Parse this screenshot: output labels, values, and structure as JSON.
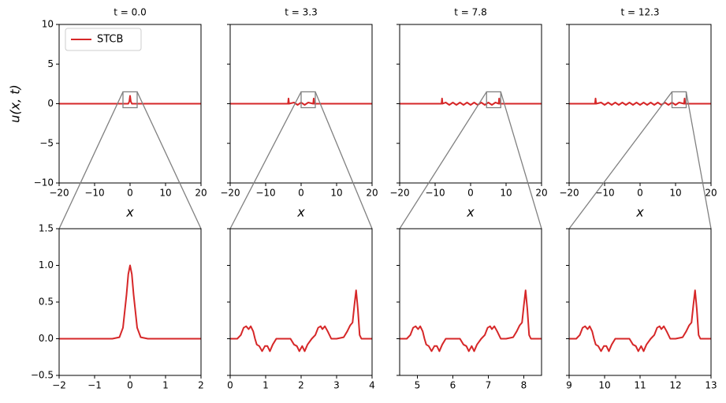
{
  "chart_data": [
    {
      "type": "line",
      "title": "t = 0.0",
      "xlabel": "x",
      "ylabel": "u(x, t)",
      "legend": "upper left",
      "x": [
        -20,
        -0.5,
        -0.2,
        0,
        0.2,
        0.5,
        20
      ],
      "series": [
        {
          "name": "STCB",
          "color": "#d62728",
          "values": [
            0,
            0,
            0.3,
            1,
            0.3,
            0,
            0
          ]
        }
      ],
      "xlim": [
        -20,
        20
      ],
      "xticks": [
        {
          "value": -20,
          "label": "−20"
        },
        {
          "value": -10,
          "label": "−10"
        },
        0,
        10,
        20
      ],
      "ylim": [
        -10,
        10
      ],
      "yticks": [
        {
          "value": -10,
          "label": "−10"
        },
        {
          "value": -5,
          "label": "−5"
        },
        0,
        5,
        10
      ]
    },
    {
      "type": "line",
      "title": "t = 3.3",
      "xlabel": "x",
      "x": [
        -20,
        -3.7,
        -3.55,
        -3.4,
        -2,
        -1,
        0,
        1,
        2,
        3.4,
        3.55,
        3.7,
        20
      ],
      "series": [
        {
          "color": "#d62728",
          "values": [
            0,
            0,
            0.66,
            0,
            0.15,
            -0.15,
            0.15,
            -0.15,
            0.15,
            0,
            0.66,
            0,
            0
          ]
        }
      ],
      "xlim": [
        -20,
        20
      ],
      "xticks": [
        {
          "value": -20,
          "label": "−20"
        },
        {
          "value": -10,
          "label": "−10"
        },
        0,
        10,
        20
      ],
      "ylim": [
        -10,
        10
      ],
      "yticks": [
        -10,
        -5,
        0,
        5,
        10
      ],
      "ytick_labels": false
    },
    {
      "type": "line",
      "title": "t = 7.8",
      "xlabel": "x",
      "x": [
        -20,
        -8.2,
        -8.05,
        -7.9,
        -7,
        -6,
        -5,
        -4,
        -3,
        -2,
        -1,
        0,
        1,
        2,
        3,
        4,
        5,
        6,
        7,
        7.9,
        8.05,
        8.2,
        20
      ],
      "series": [
        {
          "color": "#d62728",
          "values": [
            0,
            0,
            0.66,
            0,
            0.15,
            -0.15,
            0.15,
            -0.15,
            0.15,
            -0.15,
            0.15,
            -0.15,
            0.15,
            -0.15,
            0.15,
            -0.15,
            0.15,
            -0.15,
            0.15,
            0,
            0.66,
            0,
            0
          ]
        }
      ],
      "xlim": [
        -20,
        20
      ],
      "xticks": [
        {
          "value": -20,
          "label": "−20"
        },
        {
          "value": -10,
          "label": "−10"
        },
        0,
        10,
        20
      ],
      "ylim": [
        -10,
        10
      ],
      "yticks": [
        -10,
        -5,
        0,
        5,
        10
      ],
      "ytick_labels": false
    },
    {
      "type": "line",
      "title": "t = 12.3",
      "xlabel": "x",
      "x": [
        -20,
        -12.7,
        -12.55,
        -12.4,
        -11,
        -10,
        -9,
        -8,
        -7,
        -6,
        -5,
        -4,
        -3,
        -2,
        -1,
        0,
        1,
        2,
        3,
        4,
        5,
        6,
        7,
        8,
        9,
        10,
        11,
        12.4,
        12.55,
        12.7,
        20
      ],
      "series": [
        {
          "color": "#d62728",
          "values": [
            0,
            0,
            0.66,
            0,
            0.15,
            -0.15,
            0.15,
            -0.15,
            0.15,
            -0.15,
            0.15,
            -0.15,
            0.15,
            -0.15,
            0.15,
            -0.15,
            0.15,
            -0.15,
            0.15,
            -0.15,
            0.15,
            -0.15,
            0.15,
            -0.15,
            0.15,
            -0.15,
            0.15,
            0,
            0.66,
            0,
            0
          ]
        }
      ],
      "xlim": [
        -20,
        20
      ],
      "xticks": [
        {
          "value": -20,
          "label": "−20"
        },
        {
          "value": -10,
          "label": "−10"
        },
        0,
        10,
        20
      ],
      "ylim": [
        -10,
        10
      ],
      "yticks": [
        -10,
        -5,
        0,
        5,
        10
      ],
      "ytick_labels": false
    },
    {
      "type": "line",
      "x": [
        -2,
        -0.5,
        -0.3,
        -0.2,
        -0.1,
        -0.05,
        0,
        0.05,
        0.1,
        0.2,
        0.3,
        0.5,
        2
      ],
      "series": [
        {
          "color": "#d62728",
          "values": [
            0,
            0,
            0.02,
            0.15,
            0.6,
            0.88,
            1,
            0.88,
            0.6,
            0.15,
            0.02,
            0,
            0
          ]
        }
      ],
      "xlim": [
        -2,
        2
      ],
      "xticks": [
        {
          "value": -2,
          "label": "−2"
        },
        {
          "value": -1,
          "label": "−1"
        },
        0,
        1,
        2
      ],
      "ylim": [
        -0.5,
        1.5
      ],
      "yticks": [
        {
          "value": -0.5,
          "label": "−0.5"
        },
        {
          "value": 0,
          "label": "0.0"
        },
        0.5,
        {
          "value": 1,
          "label": "1.0"
        },
        1.5
      ]
    },
    {
      "type": "line",
      "x": [
        0,
        0.2,
        0.3,
        0.38,
        0.45,
        0.52,
        0.58,
        0.65,
        0.7,
        0.75,
        0.82,
        0.9,
        0.98,
        1.05,
        1.12,
        1.2,
        1.3,
        1.5,
        1.7,
        1.8,
        1.88,
        1.95,
        2.03,
        2.1,
        2.18,
        2.3,
        2.4,
        2.48,
        2.55,
        2.6,
        2.67,
        2.75,
        2.85,
        3.0,
        3.2,
        3.3,
        3.38,
        3.45,
        3.5,
        3.55,
        3.6,
        3.65,
        3.7,
        4.0
      ],
      "series": [
        {
          "color": "#d62728",
          "values": [
            0,
            0,
            0.05,
            0.15,
            0.17,
            0.13,
            0.17,
            0.1,
            0,
            -0.08,
            -0.1,
            -0.17,
            -0.1,
            -0.1,
            -0.17,
            -0.08,
            0,
            0,
            0,
            -0.08,
            -0.1,
            -0.17,
            -0.1,
            -0.17,
            -0.08,
            0,
            0.05,
            0.15,
            0.17,
            0.13,
            0.17,
            0.1,
            0,
            0,
            0.02,
            0.1,
            0.18,
            0.22,
            0.45,
            0.66,
            0.4,
            0.05,
            0,
            0
          ]
        }
      ],
      "xlim": [
        0,
        4
      ],
      "xticks": [
        0,
        1,
        2,
        3,
        4
      ],
      "ylim": [
        -0.5,
        1.5
      ],
      "yticks": [
        -0.5,
        0,
        0.5,
        1,
        1.5
      ],
      "ytick_labels": false
    },
    {
      "type": "line",
      "x": [
        4.5,
        4.7,
        4.8,
        4.88,
        4.95,
        5.02,
        5.08,
        5.15,
        5.2,
        5.25,
        5.32,
        5.4,
        5.48,
        5.55,
        5.62,
        5.7,
        5.8,
        6.0,
        6.2,
        6.3,
        6.38,
        6.45,
        6.53,
        6.6,
        6.68,
        6.8,
        6.9,
        6.98,
        7.05,
        7.1,
        7.17,
        7.25,
        7.35,
        7.5,
        7.7,
        7.8,
        7.88,
        7.95,
        8.0,
        8.05,
        8.1,
        8.15,
        8.2,
        8.5
      ],
      "series": [
        {
          "color": "#d62728",
          "values": [
            0,
            0,
            0.05,
            0.15,
            0.17,
            0.13,
            0.17,
            0.1,
            0,
            -0.08,
            -0.1,
            -0.17,
            -0.1,
            -0.1,
            -0.17,
            -0.08,
            0,
            0,
            0,
            -0.08,
            -0.1,
            -0.17,
            -0.1,
            -0.17,
            -0.08,
            0,
            0.05,
            0.15,
            0.17,
            0.13,
            0.17,
            0.1,
            0,
            0,
            0.02,
            0.1,
            0.18,
            0.22,
            0.45,
            0.66,
            0.4,
            0.05,
            0,
            0
          ]
        }
      ],
      "xlim": [
        4.5,
        8.5
      ],
      "xticks": [
        5,
        6,
        7,
        8
      ],
      "ylim": [
        -0.5,
        1.5
      ],
      "yticks": [
        -0.5,
        0,
        0.5,
        1,
        1.5
      ],
      "ytick_labels": false
    },
    {
      "type": "line",
      "x": [
        9,
        9.2,
        9.3,
        9.38,
        9.45,
        9.52,
        9.58,
        9.65,
        9.7,
        9.75,
        9.82,
        9.9,
        9.98,
        10.05,
        10.12,
        10.2,
        10.3,
        10.5,
        10.7,
        10.8,
        10.88,
        10.95,
        11.03,
        11.1,
        11.18,
        11.3,
        11.4,
        11.48,
        11.55,
        11.6,
        11.67,
        11.75,
        11.85,
        12.0,
        12.2,
        12.3,
        12.38,
        12.45,
        12.5,
        12.55,
        12.6,
        12.65,
        12.7,
        13.0
      ],
      "series": [
        {
          "color": "#d62728",
          "values": [
            0,
            0,
            0.05,
            0.15,
            0.17,
            0.13,
            0.17,
            0.1,
            0,
            -0.08,
            -0.1,
            -0.17,
            -0.1,
            -0.1,
            -0.17,
            -0.08,
            0,
            0,
            0,
            -0.08,
            -0.1,
            -0.17,
            -0.1,
            -0.17,
            -0.08,
            0,
            0.05,
            0.15,
            0.17,
            0.13,
            0.17,
            0.1,
            0,
            0,
            0.02,
            0.1,
            0.18,
            0.22,
            0.45,
            0.66,
            0.4,
            0.05,
            0,
            0
          ]
        }
      ],
      "xlim": [
        9,
        13
      ],
      "xticks": [
        9,
        10,
        11,
        12,
        13
      ],
      "ylim": [
        -0.5,
        1.5
      ],
      "yticks": [
        -0.5,
        0,
        0.5,
        1,
        1.5
      ],
      "ytick_labels": false
    }
  ]
}
